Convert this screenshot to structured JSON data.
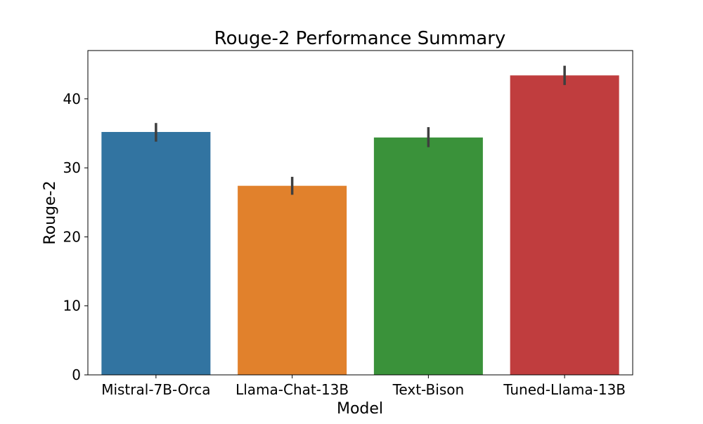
{
  "chart_data": {
    "type": "bar",
    "title": "Rouge-2 Performance Summary",
    "xlabel": "Model",
    "ylabel": "Rouge-2",
    "categories": [
      "Mistral-7B-Orca",
      "Llama-Chat-13B",
      "Text-Bison",
      "Tuned-Llama-13B"
    ],
    "values": [
      35.2,
      27.4,
      34.4,
      43.4
    ],
    "error_bars": [
      {
        "low": 33.8,
        "high": 36.5
      },
      {
        "low": 26.1,
        "high": 28.7
      },
      {
        "low": 33.0,
        "high": 35.9
      },
      {
        "low": 42.0,
        "high": 44.8
      }
    ],
    "colors": [
      "#3274a1",
      "#e1812c",
      "#3a923a",
      "#c03d3e"
    ],
    "ylim": [
      0,
      47
    ],
    "yticks": [
      0,
      10,
      20,
      30,
      40
    ],
    "ytick_labels": [
      "0",
      "10",
      "20",
      "30",
      "40"
    ],
    "grid": false,
    "legend": "none"
  }
}
